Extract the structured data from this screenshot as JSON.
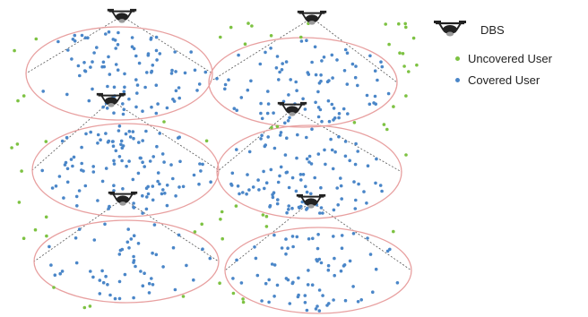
{
  "colors": {
    "uncovered": "#7dc242",
    "covered": "#4a86c8",
    "coverage_boundary": "#e8a0a0",
    "beam_line": "#555555",
    "drone": "#222222"
  },
  "legend": {
    "items": [
      {
        "label": "DBS",
        "icon": "drone-icon"
      },
      {
        "label": "Uncovered User",
        "icon": "uncovered-user-dot-icon"
      },
      {
        "label": "Covered User",
        "icon": "covered-user-dot-icon"
      }
    ]
  },
  "cells": [
    {
      "name": "cell-top-left",
      "covered_users": 95
    },
    {
      "name": "cell-top-right",
      "covered_users": 90
    },
    {
      "name": "cell-middle-left",
      "covered_users": 110
    },
    {
      "name": "cell-middle-right",
      "covered_users": 105
    },
    {
      "name": "cell-bottom-left",
      "covered_users": 55
    },
    {
      "name": "cell-bottom-right",
      "covered_users": 75
    }
  ],
  "uncovered_users": 60
}
